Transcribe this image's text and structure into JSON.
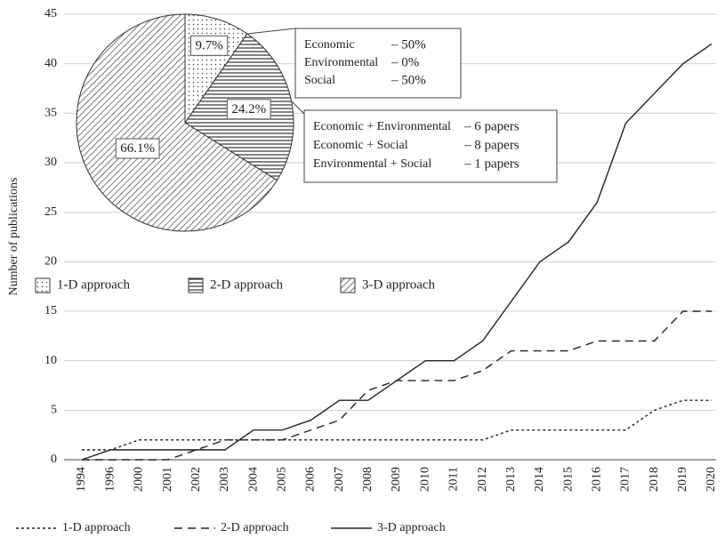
{
  "chart_data": [
    {
      "type": "line",
      "ylabel": "Number of publications",
      "categories": [
        "1994",
        "1996",
        "2000",
        "2001",
        "2002",
        "2003",
        "2004",
        "2005",
        "2006",
        "2007",
        "2008",
        "2009",
        "2010",
        "2011",
        "2012",
        "2013",
        "2014",
        "2015",
        "2016",
        "2017",
        "2018",
        "2019",
        "2020"
      ],
      "series": [
        {
          "name": "1-D approach",
          "color": "#222222",
          "line_style": "dotted",
          "values": [
            1,
            1,
            2,
            2,
            2,
            2,
            2,
            2,
            2,
            2,
            2,
            2,
            2,
            2,
            2,
            3,
            3,
            3,
            3,
            3,
            5,
            6,
            6
          ]
        },
        {
          "name": "2-D approach",
          "color": "#222222",
          "line_style": "dashed",
          "values": [
            0,
            0,
            0,
            0,
            1,
            2,
            2,
            2,
            3,
            4,
            7,
            8,
            8,
            8,
            9,
            11,
            11,
            11,
            12,
            12,
            12,
            15,
            15
          ]
        },
        {
          "name": "3-D approach",
          "color": "#222222",
          "line_style": "solid",
          "values": [
            0,
            1,
            1,
            1,
            1,
            1,
            3,
            3,
            4,
            6,
            6,
            8,
            10,
            10,
            12,
            16,
            20,
            22,
            26,
            34,
            37,
            40,
            42
          ]
        }
      ],
      "ylim": [
        0,
        45
      ],
      "yticks": [
        0,
        5,
        10,
        15,
        20,
        25,
        30,
        35,
        40,
        45
      ],
      "legend": "bottom"
    },
    {
      "type": "pie",
      "categories": [
        "1-D approach",
        "2-D approach",
        "3-D approach"
      ],
      "values": [
        9.7,
        24.2,
        66.1
      ],
      "value_labels": [
        "9.7%",
        "24.2%",
        "66.1%"
      ],
      "patterns": [
        "dots",
        "horizontal",
        "diagonal"
      ],
      "annotations": [
        [
          [
            "Economic",
            "– 50%"
          ],
          [
            "Environmental",
            "– 0%"
          ],
          [
            "Social",
            "– 50%"
          ]
        ],
        [
          [
            "Economic + Environmental",
            "– 6 papers"
          ],
          [
            "Economic + Social",
            "– 8 papers"
          ],
          [
            "Environmental + Social",
            "– 1 papers"
          ]
        ]
      ]
    }
  ]
}
